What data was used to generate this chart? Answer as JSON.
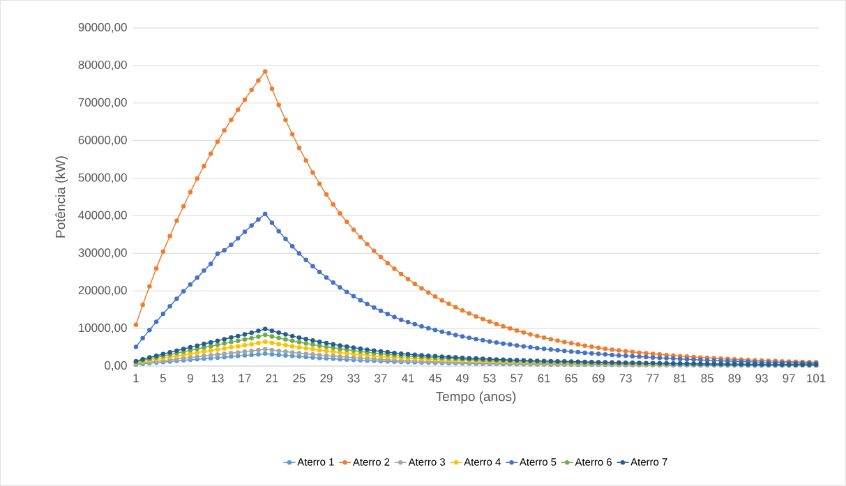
{
  "chart_data": {
    "type": "line",
    "xlabel": "Tempo (anos)",
    "ylabel": "Potência (kW)",
    "categories": [
      "1",
      null,
      null,
      null,
      "5",
      null,
      null,
      null,
      "9",
      null,
      null,
      null,
      "13",
      null,
      null,
      null,
      "17",
      null,
      null,
      null,
      "21",
      null,
      null,
      null,
      "25",
      null,
      null,
      null,
      "29",
      null,
      null,
      null,
      "33",
      null,
      null,
      null,
      "37",
      null,
      null,
      null,
      "41",
      null,
      null,
      null,
      "45",
      null,
      null,
      null,
      "49",
      null,
      null,
      null,
      "53",
      null,
      null,
      null,
      "57",
      null,
      null,
      null,
      "61",
      null,
      null,
      null,
      "65",
      null,
      null,
      null,
      "69",
      null,
      null,
      null,
      "73",
      null,
      null,
      null,
      "77",
      null,
      null,
      null,
      "81",
      null,
      null,
      null,
      "85",
      null,
      null,
      null,
      "89",
      null,
      null,
      null,
      "93",
      null,
      null,
      null,
      "97",
      null,
      null,
      null,
      "101"
    ],
    "ylim": [
      0,
      90000
    ],
    "yticks": [
      {
        "value": 0,
        "label": "0,00"
      },
      {
        "value": 10000,
        "label": "10000,00"
      },
      {
        "value": 20000,
        "label": "20000,00"
      },
      {
        "value": 30000,
        "label": "30000,00"
      },
      {
        "value": 40000,
        "label": "40000,00"
      },
      {
        "value": 50000,
        "label": "50000,00"
      },
      {
        "value": 60000,
        "label": "60000,00"
      },
      {
        "value": 70000,
        "label": "70000,00"
      },
      {
        "value": 80000,
        "label": "80000,00"
      },
      {
        "value": 90000,
        "label": "90000,00"
      }
    ],
    "grid": "y",
    "legend": "bottom",
    "marker": "circle",
    "series": [
      {
        "name": "Aterro 1",
        "color": "#5b9bd5",
        "values": [
          430,
          600,
          770,
          920,
          1070,
          1220,
          1370,
          1520,
          1670,
          1820,
          1970,
          2100,
          2250,
          2380,
          2530,
          2670,
          2820,
          2950,
          3120,
          3300,
          3130,
          2970,
          2810,
          2670,
          2530,
          2400,
          2270,
          2150,
          2040,
          1930,
          1830,
          1730,
          1630,
          1540,
          1460,
          1380,
          1300,
          1230,
          1160,
          1100,
          1050,
          1000,
          960,
          920,
          880,
          840,
          800,
          770,
          730,
          700,
          670,
          650,
          620,
          590,
          570,
          550,
          530,
          510,
          490,
          470,
          450,
          440,
          420,
          410,
          400,
          380,
          370,
          360,
          350,
          330,
          320,
          310,
          300,
          290,
          280,
          270,
          260,
          250,
          240,
          230,
          230,
          220,
          210,
          200,
          200,
          190,
          180,
          180,
          170,
          170,
          160,
          160,
          150,
          150,
          140,
          140,
          130,
          130,
          null,
          null,
          null
        ]
      },
      {
        "name": "Aterro 2",
        "color": "#ed7d31",
        "values": [
          11000,
          16300,
          21200,
          26000,
          30500,
          34600,
          38700,
          42500,
          46300,
          49900,
          53200,
          56500,
          59700,
          62700,
          65500,
          68200,
          70900,
          73500,
          76000,
          78400,
          73800,
          69500,
          65500,
          61700,
          58100,
          54700,
          51500,
          48500,
          45700,
          43000,
          40650,
          38400,
          36300,
          34300,
          32450,
          30650,
          28980,
          27400,
          25900,
          24500,
          23170,
          21900,
          20710,
          19580,
          18520,
          17510,
          16560,
          15660,
          14800,
          14000,
          13240,
          12520,
          11840,
          11190,
          10590,
          10010,
          9470,
          8950,
          8460,
          8000,
          7570,
          7160,
          6780,
          6410,
          6070,
          5740,
          5430,
          5140,
          4860,
          4600,
          4380,
          4170,
          3960,
          3770,
          3590,
          3420,
          3250,
          3090,
          2940,
          2800,
          2660,
          2530,
          2410,
          2290,
          2180,
          2080,
          1980,
          1880,
          1790,
          1700,
          1620,
          1540,
          1470,
          1400,
          1340,
          1270,
          1210,
          1150,
          1100,
          1050,
          1000
        ]
      },
      {
        "name": "Aterro 3",
        "color": "#a5a5a5",
        "values": [
          590,
          820,
          1050,
          1250,
          1460,
          1660,
          1870,
          2070,
          2280,
          2480,
          2680,
          2870,
          3070,
          3250,
          3460,
          3640,
          3840,
          4030,
          4250,
          4500,
          4270,
          4050,
          3840,
          3640,
          3450,
          3270,
          3100,
          2940,
          2780,
          2640,
          2490,
          2360,
          2230,
          2110,
          1990,
          1880,
          1780,
          1680,
          1590,
          1500,
          1430,
          1370,
          1310,
          1250,
          1200,
          1150,
          1090,
          1050,
          1000,
          960,
          920,
          880,
          850,
          810,
          780,
          750,
          720,
          690,
          660,
          640,
          610,
          600,
          580,
          560,
          540,
          520,
          510,
          490,
          470,
          460,
          440,
          420,
          410,
          400,
          380,
          370,
          350,
          340,
          330,
          320,
          310,
          300,
          290,
          280,
          270,
          260,
          250,
          240,
          240,
          230,
          220,
          210,
          210,
          200,
          190,
          190,
          180,
          180,
          170,
          160,
          160
        ]
      },
      {
        "name": "Aterro 4",
        "color": "#ffc000",
        "values": [
          850,
          1180,
          1510,
          1810,
          2100,
          2400,
          2690,
          2990,
          3290,
          3580,
          3880,
          4140,
          4430,
          4700,
          4990,
          5260,
          5550,
          5810,
          6140,
          6500,
          6170,
          5850,
          5550,
          5260,
          4980,
          4720,
          4480,
          4240,
          4020,
          3810,
          3600,
          3400,
          3220,
          3040,
          2870,
          2710,
          2570,
          2420,
          2290,
          2170,
          2070,
          1980,
          1890,
          1810,
          1730,
          1660,
          1580,
          1510,
          1450,
          1380,
          1330,
          1270,
          1220,
          1170,
          1120,
          1080,
          1040,
          1000,
          960,
          920,
          890,
          860,
          830,
          810,
          780,
          760,
          730,
          700,
          680,
          660,
          640,
          610,
          590,
          570,
          550,
          530,
          510,
          490,
          480,
          null,
          null,
          null,
          null,
          null,
          null,
          null,
          null,
          null,
          null,
          null,
          null,
          null,
          null,
          null,
          null,
          null,
          null,
          null,
          null,
          null,
          null
        ]
      },
      {
        "name": "Aterro 5",
        "color": "#4472c4",
        "values": [
          5100,
          7400,
          9600,
          11800,
          13900,
          15900,
          17900,
          19900,
          21700,
          23500,
          25400,
          27200,
          29900,
          30800,
          32300,
          34000,
          35700,
          37400,
          39000,
          40500,
          38140,
          35920,
          33820,
          31850,
          29990,
          28240,
          26600,
          25050,
          23590,
          22200,
          20930,
          19730,
          18600,
          17530,
          16530,
          15580,
          14690,
          13850,
          13050,
          12300,
          11710,
          11140,
          10600,
          10090,
          9600,
          9140,
          8700,
          8280,
          7880,
          7500,
          7170,
          6860,
          6560,
          6270,
          6000,
          5740,
          5490,
          5250,
          5020,
          4800,
          4590,
          4400,
          4210,
          4030,
          3860,
          3690,
          3530,
          3380,
          3240,
          3100,
          2970,
          2840,
          2720,
          2600,
          2490,
          2390,
          2280,
          2190,
          2090,
          2000,
          1900,
          1800,
          1710,
          1630,
          1550,
          1470,
          1400,
          1330,
          1260,
          1200,
          1140,
          1090,
          1040,
          990,
          940,
          900,
          850,
          810,
          770,
          740,
          700
        ]
      },
      {
        "name": "Aterro 6",
        "color": "#70ad47",
        "values": [
          1090,
          1510,
          1930,
          2310,
          2690,
          3070,
          3440,
          3820,
          4200,
          4580,
          4960,
          5290,
          5670,
          6010,
          6380,
          6720,
          7100,
          7430,
          7850,
          8320,
          7890,
          7480,
          7090,
          6720,
          6370,
          6040,
          5730,
          5430,
          5140,
          4870,
          4600,
          4350,
          4120,
          3890,
          3670,
          3470,
          3280,
          3100,
          2930,
          2770,
          2650,
          2530,
          2420,
          2310,
          2210,
          2120,
          2020,
          1930,
          1850,
          1760,
          1700,
          1630,
          1560,
          1500,
          1440,
          1380,
          1330,
          1280,
          1230,
          1180,
          1130,
          1100,
          1070,
          1030,
          1000,
          970,
          930,
          900,
          870,
          840,
          810,
          780,
          760,
          730,
          710,
          680,
          660,
          630,
          610,
          590,
          570,
          550,
          530,
          510,
          500,
          480,
          460,
          450,
          440,
          420,
          410,
          390,
          380,
          370,
          360,
          340,
          340,
          320,
          320,
          300,
          290
        ]
      },
      {
        "name": "Aterro 7",
        "color": "#255e91",
        "values": [
          1300,
          1800,
          2300,
          2750,
          3200,
          3650,
          4100,
          4550,
          5000,
          5450,
          5900,
          6300,
          6750,
          7150,
          7600,
          8000,
          8450,
          8850,
          9350,
          9900,
          9390,
          8900,
          8440,
          8000,
          7580,
          7190,
          6820,
          6460,
          6120,
          5800,
          5480,
          5180,
          4900,
          4630,
          4370,
          4130,
          3910,
          3690,
          3490,
          3300,
          3150,
          3010,
          2880,
          2750,
          2630,
          2520,
          2400,
          2300,
          2200,
          2100,
          2020,
          1940,
          1860,
          1780,
          1710,
          1640,
          1580,
          1520,
          1460,
          1400,
          1350,
          1310,
          1270,
          1230,
          1190,
          1150,
          1110,
          1070,
          1040,
          1000,
          970,
          930,
          900,
          870,
          840,
          810,
          780,
          750,
          730,
          700,
          680,
          650,
          630,
          610,
          590,
          570,
          550,
          530,
          520,
          500,
          485,
          470,
          455,
          440,
          425,
          410,
          400,
          385,
          375,
          360,
          350
        ]
      }
    ]
  }
}
